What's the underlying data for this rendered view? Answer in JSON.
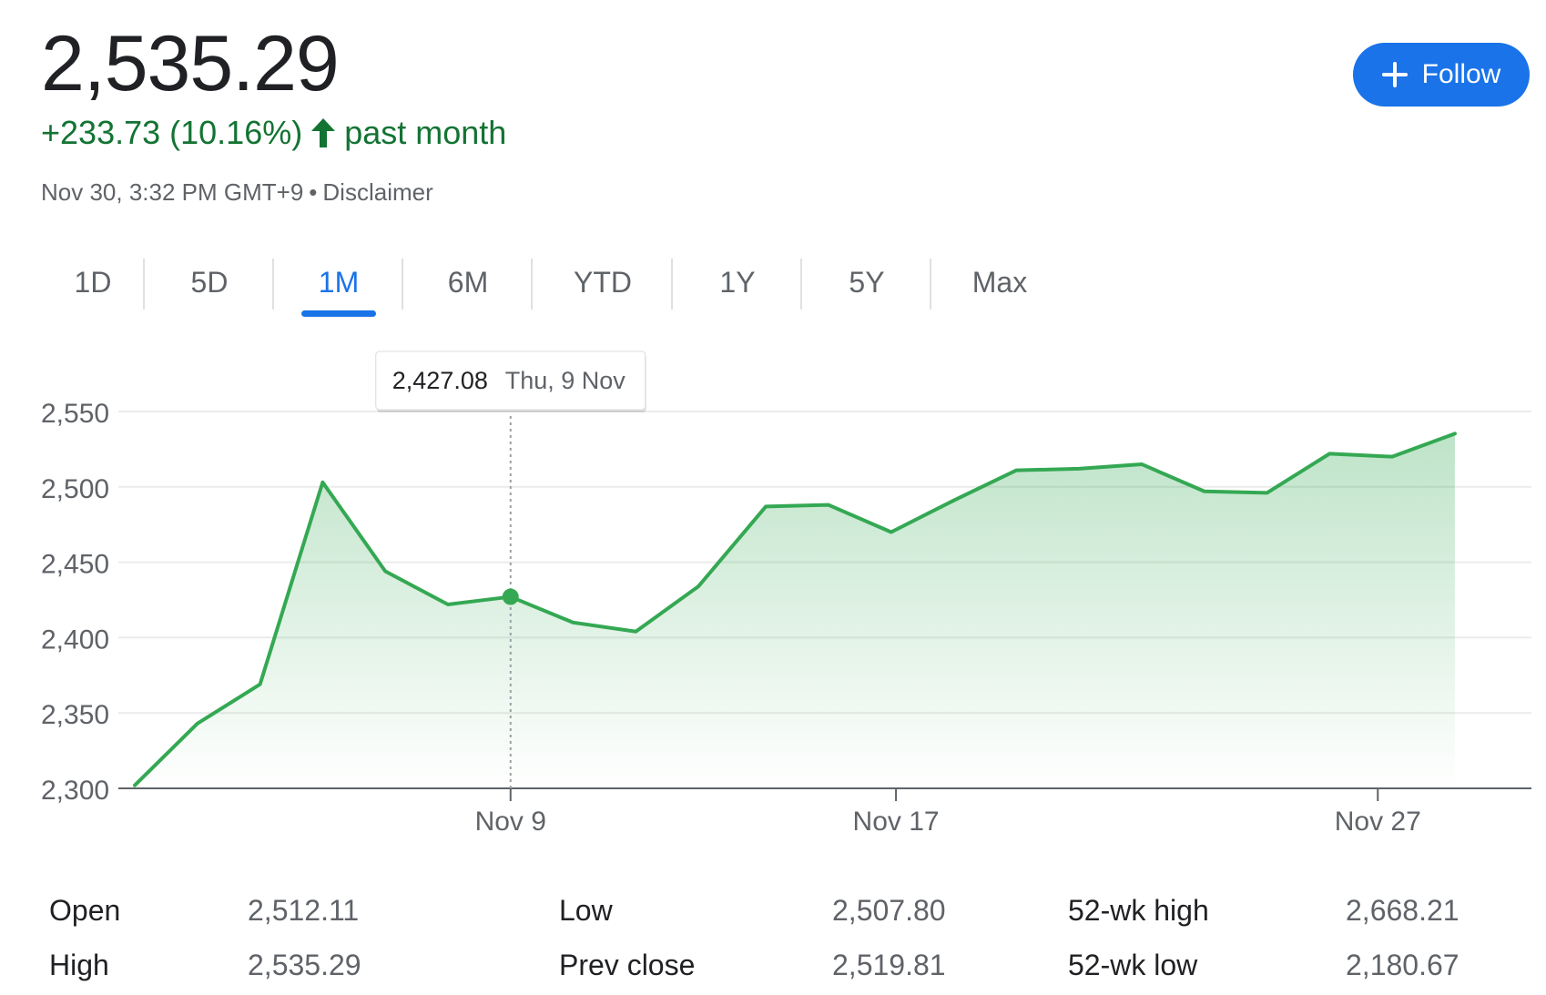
{
  "quote": {
    "price": "2,535.29",
    "change": "+233.73 (10.16%)",
    "period": "past month",
    "timestamp": "Nov 30, 3:32 PM GMT+9",
    "separator": "•",
    "disclaimer": "Disclaimer",
    "up_color": "#137333",
    "arrow_icon": "arrow-up-icon"
  },
  "follow_button": {
    "label": "Follow",
    "icon": "plus-icon",
    "color": "#1a73e8"
  },
  "tabs": [
    {
      "label": "1D",
      "active": false
    },
    {
      "label": "5D",
      "active": false
    },
    {
      "label": "1M",
      "active": true
    },
    {
      "label": "6M",
      "active": false
    },
    {
      "label": "YTD",
      "active": false
    },
    {
      "label": "1Y",
      "active": false
    },
    {
      "label": "5Y",
      "active": false
    },
    {
      "label": "Max",
      "active": false
    }
  ],
  "tooltip": {
    "value": "2,427.08",
    "date": "Thu, 9 Nov"
  },
  "chart_data": {
    "type": "area",
    "color": "#34a853",
    "ylim": [
      2300,
      2550
    ],
    "y_ticks": [
      2300,
      2350,
      2400,
      2450,
      2500,
      2550
    ],
    "y_tick_labels": [
      "2,300",
      "2,350",
      "2,400",
      "2,450",
      "2,500",
      "2,550"
    ],
    "x_ticks": [
      {
        "label": "Nov 9",
        "day": 9
      },
      {
        "label": "Nov 17",
        "day": 17
      },
      {
        "label": "Nov 27",
        "day": 27
      }
    ],
    "x_domain": [
      1.2,
      30.0
    ],
    "points": [
      {
        "day": 1.2,
        "value": 2302
      },
      {
        "day": 2.5,
        "value": 2343
      },
      {
        "day": 3.8,
        "value": 2369
      },
      {
        "day": 5.1,
        "value": 2503
      },
      {
        "day": 6.4,
        "value": 2444
      },
      {
        "day": 7.7,
        "value": 2422
      },
      {
        "day": 9.0,
        "value": 2427.08
      },
      {
        "day": 10.3,
        "value": 2410
      },
      {
        "day": 11.6,
        "value": 2404
      },
      {
        "day": 12.9,
        "value": 2434
      },
      {
        "day": 14.3,
        "value": 2487
      },
      {
        "day": 15.6,
        "value": 2488
      },
      {
        "day": 16.9,
        "value": 2470
      },
      {
        "day": 18.2,
        "value": 2491
      },
      {
        "day": 19.5,
        "value": 2511
      },
      {
        "day": 20.8,
        "value": 2512
      },
      {
        "day": 22.1,
        "value": 2515
      },
      {
        "day": 23.4,
        "value": 2497
      },
      {
        "day": 24.7,
        "value": 2496
      },
      {
        "day": 26.0,
        "value": 2522
      },
      {
        "day": 27.3,
        "value": 2520
      },
      {
        "day": 28.6,
        "value": 2535.29
      }
    ],
    "highlight_index": 6,
    "grid": true
  },
  "stats": [
    {
      "label": "Open",
      "value": "2,512.11"
    },
    {
      "label": "High",
      "value": "2,535.29"
    },
    {
      "label": "Low",
      "value": "2,507.80"
    },
    {
      "label": "Prev close",
      "value": "2,519.81"
    },
    {
      "label": "52-wk high",
      "value": "2,668.21"
    },
    {
      "label": "52-wk low",
      "value": "2,180.67"
    }
  ]
}
